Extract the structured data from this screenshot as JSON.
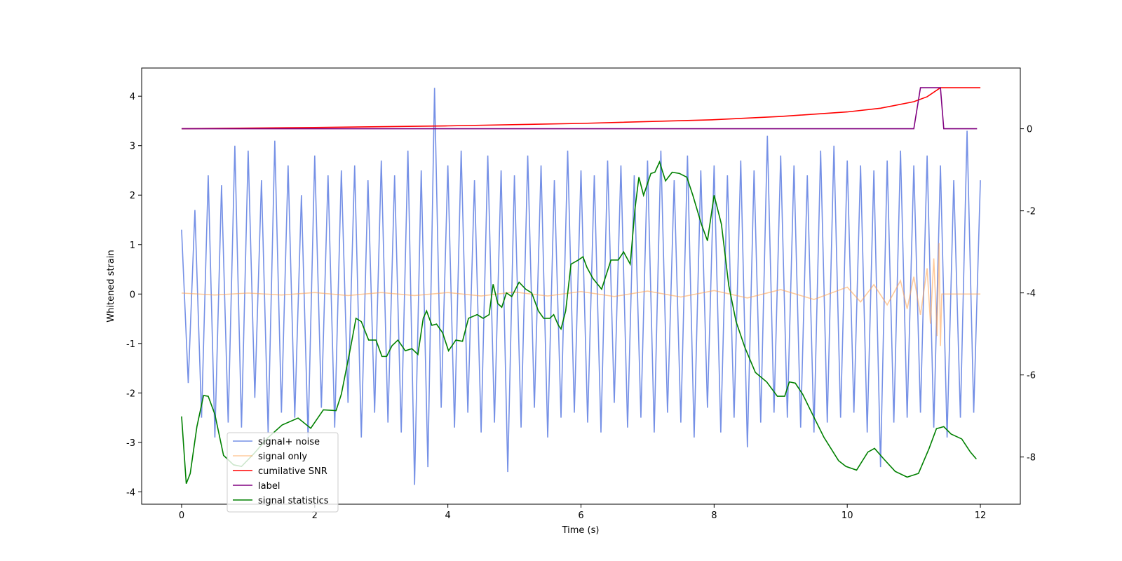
{
  "chart_data": {
    "type": "line",
    "xlabel": "Time (s)",
    "ylabel": "Whitened strain",
    "xlim": [
      -0.6,
      12.6
    ],
    "xticks": [
      0,
      2,
      4,
      6,
      8,
      10,
      12
    ],
    "ylim": [
      -4.25,
      4.57
    ],
    "yticks": [
      -4,
      -3,
      -2,
      -1,
      0,
      1,
      2,
      3,
      4
    ],
    "y2lim": [
      -9.15,
      1.48
    ],
    "y2ticks": [
      -8,
      -6,
      -4,
      -2,
      0
    ],
    "legend": "lower left",
    "series": [
      {
        "name": "signal+ noise",
        "color": "#7590e6",
        "x": [
          0,
          0.1,
          0.2,
          0.3,
          0.4,
          0.5,
          0.6,
          0.7,
          0.8,
          0.9,
          1.0,
          1.1,
          1.2,
          1.3,
          1.4,
          1.5,
          1.6,
          1.7,
          1.8,
          1.9,
          2.0,
          2.1,
          2.2,
          2.3,
          2.4,
          2.5,
          2.6,
          2.7,
          2.8,
          2.9,
          3.0,
          3.1,
          3.2,
          3.3,
          3.4,
          3.5,
          3.6,
          3.7,
          3.8,
          3.9,
          4.0,
          4.1,
          4.2,
          4.3,
          4.4,
          4.5,
          4.6,
          4.7,
          4.8,
          4.9,
          5.0,
          5.1,
          5.2,
          5.3,
          5.4,
          5.5,
          5.6,
          5.7,
          5.8,
          5.9,
          6.0,
          6.1,
          6.2,
          6.3,
          6.4,
          6.5,
          6.6,
          6.7,
          6.8,
          6.9,
          7.0,
          7.1,
          7.2,
          7.3,
          7.4,
          7.5,
          7.6,
          7.7,
          7.8,
          7.9,
          8.0,
          8.1,
          8.2,
          8.3,
          8.4,
          8.5,
          8.6,
          8.7,
          8.8,
          8.9,
          9.0,
          9.1,
          9.2,
          9.3,
          9.4,
          9.5,
          9.6,
          9.7,
          9.8,
          9.9,
          10.0,
          10.1,
          10.2,
          10.3,
          10.4,
          10.5,
          10.6,
          10.7,
          10.8,
          10.9,
          11.0,
          11.1,
          11.2,
          11.3,
          11.4,
          11.5,
          11.6,
          11.7,
          11.8,
          11.9,
          12.0
        ],
        "values": [
          1.3,
          -1.8,
          1.7,
          -2.5,
          2.4,
          -2.9,
          2.2,
          -2.6,
          3.0,
          -2.7,
          2.9,
          -2.1,
          2.3,
          -2.8,
          3.1,
          -2.4,
          2.6,
          -2.5,
          2.0,
          -2.9,
          2.8,
          -2.3,
          2.4,
          -2.7,
          2.5,
          -2.2,
          2.6,
          -2.9,
          2.3,
          -2.4,
          2.7,
          -2.6,
          2.4,
          -2.8,
          2.9,
          -3.86,
          2.5,
          -3.5,
          4.17,
          -2.3,
          2.6,
          -2.7,
          2.9,
          -2.4,
          2.3,
          -2.8,
          2.8,
          -2.6,
          2.5,
          -3.6,
          2.4,
          -2.7,
          2.8,
          -2.3,
          2.6,
          -2.9,
          2.3,
          -2.5,
          2.9,
          -2.4,
          2.5,
          -2.6,
          2.4,
          -2.8,
          2.7,
          -2.2,
          2.6,
          -2.7,
          2.4,
          -2.5,
          2.7,
          -2.8,
          2.9,
          -2.4,
          2.3,
          -2.6,
          2.8,
          -2.9,
          2.5,
          -2.3,
          2.6,
          -2.8,
          2.4,
          -2.5,
          2.7,
          -3.1,
          2.5,
          -2.6,
          3.2,
          -2.4,
          2.8,
          -2.5,
          2.6,
          -2.7,
          2.4,
          -2.8,
          2.9,
          -2.6,
          3.0,
          -2.5,
          2.7,
          -2.4,
          2.6,
          -2.8,
          2.5,
          -3.5,
          2.7,
          -2.6,
          2.9,
          -2.5,
          2.6,
          -2.4,
          2.8,
          -2.7,
          2.6,
          -2.9,
          2.3,
          -2.5,
          3.3,
          -2.4,
          2.3
        ]
      },
      {
        "name": "signal only",
        "color": "#ffa04d",
        "x": [
          0,
          0.5,
          1,
          1.5,
          2,
          2.5,
          3,
          3.5,
          4,
          4.5,
          5,
          5.5,
          6,
          6.5,
          7,
          7.5,
          8,
          8.5,
          9,
          9.5,
          10,
          10.2,
          10.4,
          10.6,
          10.8,
          10.9,
          11.0,
          11.1,
          11.2,
          11.25,
          11.3,
          11.35,
          11.38,
          11.4,
          11.42,
          12
        ],
        "values": [
          0.02,
          -0.02,
          0.02,
          -0.02,
          0.03,
          -0.03,
          0.03,
          -0.03,
          0.03,
          -0.04,
          0.04,
          -0.04,
          0.05,
          -0.05,
          0.06,
          -0.06,
          0.07,
          -0.08,
          0.09,
          -0.11,
          0.14,
          -0.16,
          0.19,
          -0.22,
          0.27,
          -0.3,
          0.35,
          -0.42,
          0.52,
          -0.6,
          0.72,
          -0.85,
          1.03,
          -1.05,
          0,
          0
        ]
      },
      {
        "name": "cumilative SNR",
        "color": "red",
        "axis": "y2",
        "x": [
          0,
          2,
          4,
          6,
          8,
          9,
          10,
          10.5,
          11,
          11.2,
          11.4,
          12
        ],
        "values": [
          0,
          0.03,
          0.07,
          0.13,
          0.22,
          0.3,
          0.41,
          0.5,
          0.66,
          0.78,
          1.0,
          1.0
        ]
      },
      {
        "name": "label",
        "color": "purple",
        "axis": "y2",
        "x": [
          0,
          11.0,
          11.1,
          11.4,
          11.45,
          11.95
        ],
        "values": [
          0,
          0,
          1,
          1,
          0,
          0
        ]
      },
      {
        "name": "signal statistics",
        "color": "green",
        "axis": "y2",
        "x": [
          0,
          0.07,
          0.13,
          0.23,
          0.33,
          0.4,
          0.5,
          0.63,
          0.78,
          0.9,
          1.08,
          1.29,
          1.51,
          1.75,
          1.94,
          2.13,
          2.32,
          2.4,
          2.54,
          2.62,
          2.7,
          2.81,
          2.92,
          3.01,
          3.08,
          3.16,
          3.25,
          3.36,
          3.46,
          3.55,
          3.63,
          3.68,
          3.76,
          3.83,
          3.92,
          4.01,
          4.12,
          4.22,
          4.31,
          4.44,
          4.53,
          4.62,
          4.68,
          4.75,
          4.81,
          4.88,
          4.96,
          5.07,
          5.17,
          5.26,
          5.36,
          5.44,
          5.53,
          5.59,
          5.66,
          5.7,
          5.77,
          5.85,
          5.96,
          6.03,
          6.09,
          6.18,
          6.31,
          6.45,
          6.56,
          6.64,
          6.74,
          6.81,
          6.87,
          6.94,
          7.05,
          7.11,
          7.18,
          7.27,
          7.37,
          7.48,
          7.59,
          7.68,
          7.81,
          7.9,
          8.0,
          8.11,
          8.22,
          8.33,
          8.46,
          8.62,
          8.79,
          8.95,
          9.06,
          9.13,
          9.22,
          9.33,
          9.49,
          9.65,
          9.87,
          9.98,
          10.14,
          10.31,
          10.41,
          10.55,
          10.72,
          10.9,
          11.07,
          11.23,
          11.34,
          11.45,
          11.56,
          11.72,
          11.85,
          11.94
        ],
        "values": [
          -7.01,
          -8.65,
          -8.4,
          -7.26,
          -6.5,
          -6.52,
          -6.96,
          -7.96,
          -8.19,
          -8.23,
          -7.93,
          -7.54,
          -7.22,
          -7.05,
          -7.3,
          -6.85,
          -6.87,
          -6.47,
          -5.32,
          -4.62,
          -4.7,
          -5.15,
          -5.15,
          -5.55,
          -5.55,
          -5.29,
          -5.15,
          -5.41,
          -5.36,
          -5.5,
          -4.62,
          -4.44,
          -4.79,
          -4.76,
          -4.97,
          -5.41,
          -5.15,
          -5.18,
          -4.62,
          -4.53,
          -4.62,
          -4.53,
          -3.79,
          -4.26,
          -4.35,
          -4.0,
          -4.09,
          -3.74,
          -3.91,
          -4.0,
          -4.44,
          -4.62,
          -4.62,
          -4.53,
          -4.79,
          -4.88,
          -4.44,
          -3.3,
          -3.2,
          -3.12,
          -3.38,
          -3.65,
          -3.91,
          -3.2,
          -3.2,
          -3.0,
          -3.3,
          -1.97,
          -1.18,
          -1.62,
          -1.09,
          -1.06,
          -0.81,
          -1.27,
          -1.06,
          -1.09,
          -1.18,
          -1.62,
          -2.33,
          -2.73,
          -1.62,
          -2.33,
          -3.82,
          -4.7,
          -5.32,
          -5.94,
          -6.17,
          -6.52,
          -6.52,
          -6.17,
          -6.2,
          -6.47,
          -7.0,
          -7.52,
          -8.09,
          -8.23,
          -8.32,
          -7.88,
          -7.79,
          -8.05,
          -8.35,
          -8.49,
          -8.4,
          -7.79,
          -7.31,
          -7.26,
          -7.44,
          -7.56,
          -7.88,
          -8.05
        ]
      }
    ]
  }
}
